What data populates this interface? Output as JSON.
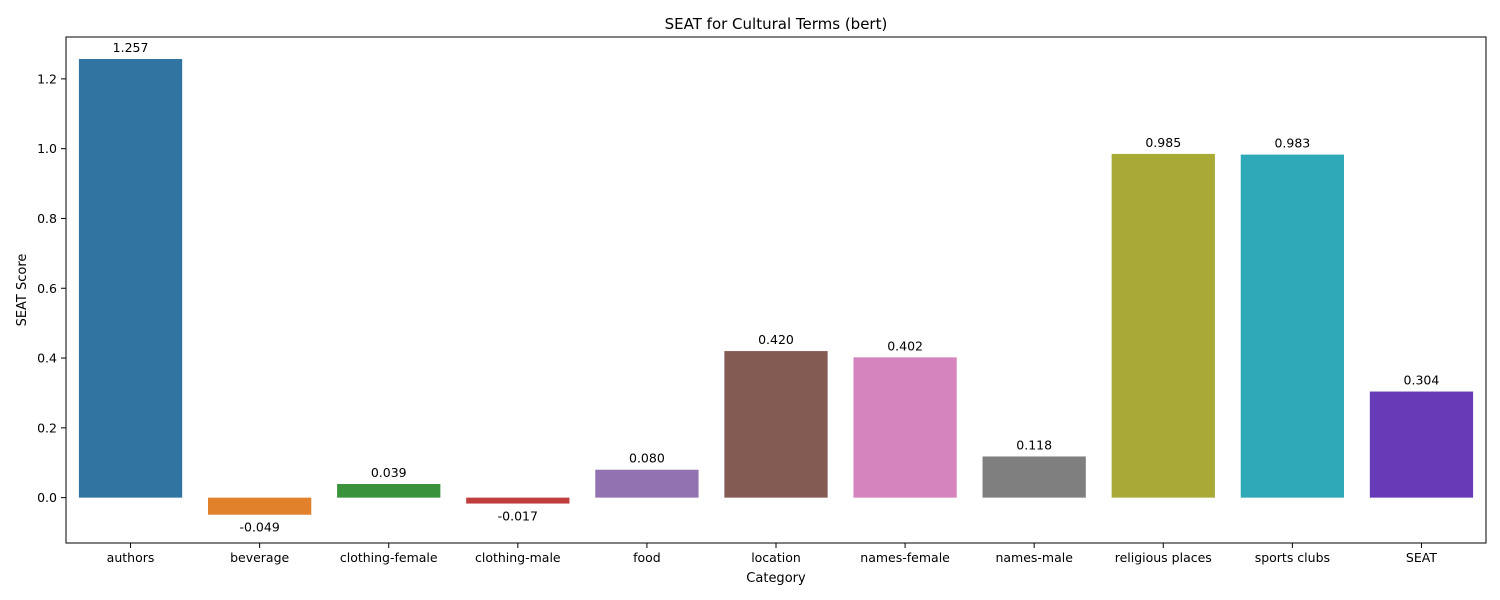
{
  "chart_data": {
    "type": "bar",
    "title": "SEAT for Cultural Terms (bert)",
    "xlabel": "Category",
    "ylabel": "SEAT Score",
    "categories": [
      "authors",
      "beverage",
      "clothing-female",
      "clothing-male",
      "food",
      "location",
      "names-female",
      "names-male",
      "religious places",
      "sports clubs",
      "SEAT"
    ],
    "values": [
      1.257,
      -0.049,
      0.039,
      -0.017,
      0.08,
      0.42,
      0.402,
      0.118,
      0.985,
      0.983,
      0.304
    ],
    "value_labels": [
      "1.257",
      "-0.049",
      "0.039",
      "-0.017",
      "0.080",
      "0.420",
      "0.402",
      "0.118",
      "0.985",
      "0.983",
      "0.304"
    ],
    "colors": [
      "#3274a1",
      "#e1812c",
      "#3a923a",
      "#c03d3e",
      "#9372b2",
      "#845b53",
      "#d684bd",
      "#7f7f7f",
      "#a9aa35",
      "#2ea9b8",
      "#673ab7"
    ],
    "ylim": [
      -0.13,
      1.32
    ],
    "yticks": [
      0.0,
      0.2,
      0.4,
      0.6,
      0.8,
      1.0,
      1.2
    ],
    "ytick_labels": [
      "0.0",
      "0.2",
      "0.4",
      "0.6",
      "0.8",
      "1.0",
      "1.2"
    ],
    "grid": false,
    "legend": "none"
  }
}
